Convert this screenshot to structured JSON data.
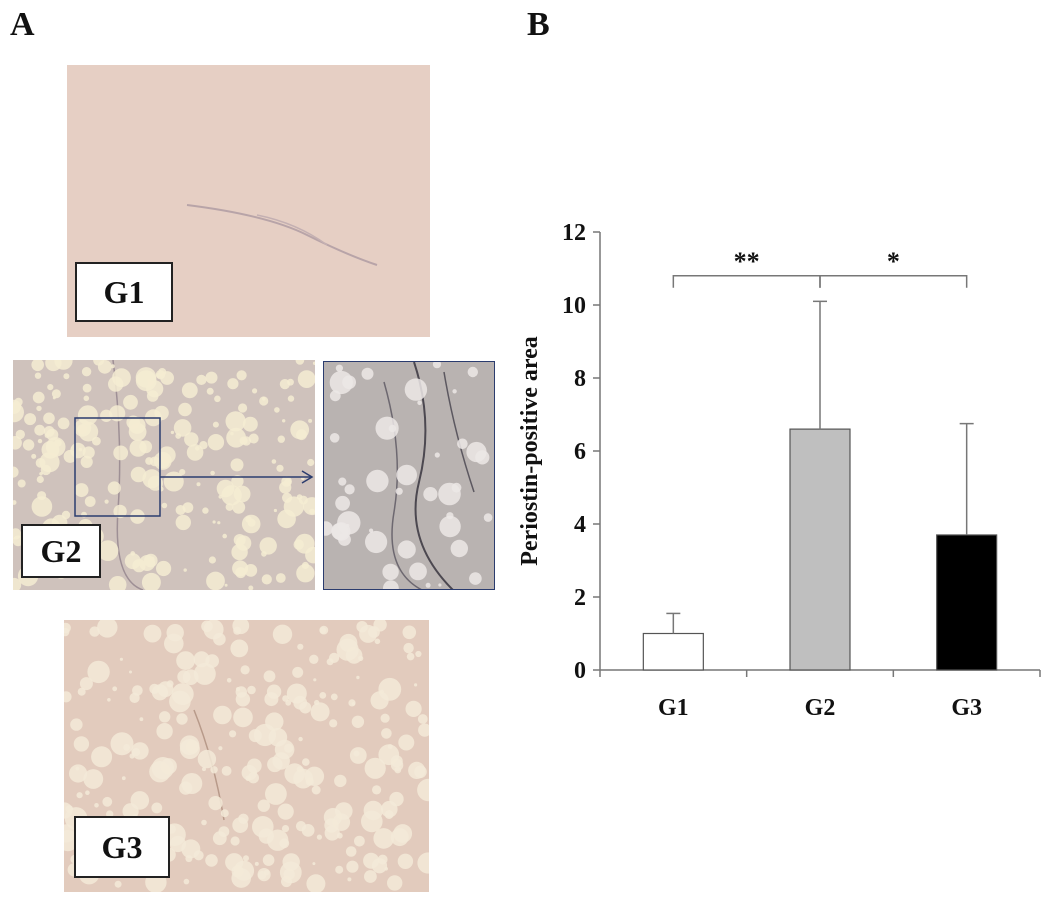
{
  "panels": {
    "a_label": "A",
    "b_label": "B"
  },
  "images": {
    "g1_label": "G1",
    "g2_label": "G2",
    "g3_label": "G3"
  },
  "chart_data": {
    "type": "bar",
    "categories": [
      "G1",
      "G2",
      "G3"
    ],
    "values": [
      1.0,
      6.6,
      3.7
    ],
    "error_upper": [
      0.55,
      3.5,
      3.05
    ],
    "bar_colors": [
      "#ffffff",
      "#bfbfbf",
      "#000000"
    ],
    "ylabel": "Periostin-positive area",
    "xlabel": "",
    "ylim": [
      0,
      12
    ],
    "yticks": [
      0,
      2,
      4,
      6,
      8,
      10,
      12
    ],
    "grid": false,
    "significance": [
      {
        "from": 0,
        "to": 1,
        "label": "**"
      },
      {
        "from": 1,
        "to": 2,
        "label": "*"
      }
    ]
  }
}
